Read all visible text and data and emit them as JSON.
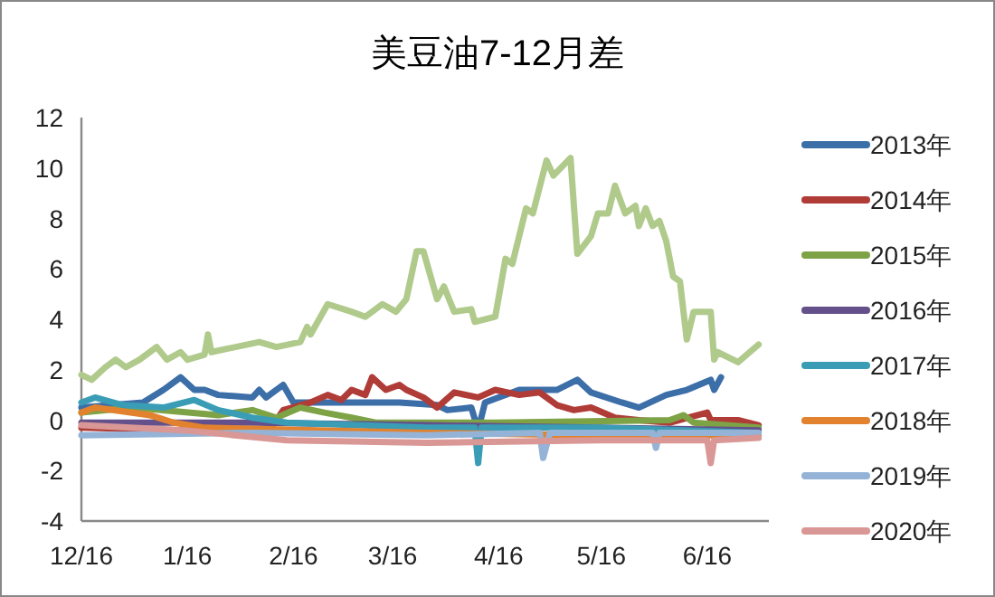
{
  "chart_data": {
    "type": "line",
    "title": "美豆油7-12月差",
    "xlim": [
      "2019-12-16",
      "2020-07-04"
    ],
    "xticks": [
      {
        "value": "2019-12-16",
        "label": "12/16"
      },
      {
        "value": "2020-01-16",
        "label": "1/16"
      },
      {
        "value": "2020-02-16",
        "label": "2/16"
      },
      {
        "value": "2020-03-16",
        "label": "3/16"
      },
      {
        "value": "2020-04-16",
        "label": "4/16"
      },
      {
        "value": "2020-05-16",
        "label": "5/16"
      },
      {
        "value": "2020-06-16",
        "label": "6/16"
      }
    ],
    "ylim": [
      -4,
      12
    ],
    "yticks": [
      -4,
      -2,
      0,
      2,
      4,
      6,
      8,
      10,
      12
    ],
    "grid": false,
    "legend": "right",
    "series": [
      {
        "color": "#b0ca8c",
        "x": [
          "2019-12-16",
          "2019-12-19",
          "2019-12-23",
          "2019-12-26",
          "2019-12-29",
          "2020-01-02",
          "2020-01-07",
          "2020-01-10",
          "2020-01-14",
          "2020-01-16",
          "2020-01-21",
          "2020-01-22",
          "2020-01-23",
          "2020-02-06",
          "2020-02-11",
          "2020-02-18",
          "2020-02-20",
          "2020-02-21",
          "2020-02-26",
          "2020-03-04",
          "2020-03-08",
          "2020-03-13",
          "2020-03-17",
          "2020-03-20",
          "2020-03-23",
          "2020-03-25",
          "2020-03-29",
          "2020-03-31",
          "2020-04-03",
          "2020-04-08",
          "2020-04-09",
          "2020-04-15",
          "2020-04-18",
          "2020-04-20",
          "2020-04-24",
          "2020-04-26",
          "2020-04-30",
          "2020-05-02",
          "2020-05-07",
          "2020-05-09",
          "2020-05-13",
          "2020-05-15",
          "2020-05-18",
          "2020-05-20",
          "2020-05-23",
          "2020-05-26",
          "2020-05-27",
          "2020-05-29",
          "2020-05-31",
          "2020-06-02",
          "2020-06-04",
          "2020-06-06",
          "2020-06-08",
          "2020-06-10",
          "2020-06-12",
          "2020-06-17",
          "2020-06-18",
          "2020-06-19",
          "2020-06-25",
          "2020-07-01"
        ],
        "values": [
          1.8,
          1.6,
          2.1,
          2.4,
          2.1,
          2.4,
          2.9,
          2.4,
          2.7,
          2.4,
          2.6,
          3.4,
          2.7,
          3.1,
          2.9,
          3.1,
          3.7,
          3.4,
          4.6,
          4.3,
          4.1,
          4.6,
          4.3,
          4.8,
          6.7,
          6.7,
          4.8,
          5.3,
          4.3,
          4.4,
          3.9,
          4.1,
          6.4,
          6.2,
          8.4,
          8.2,
          10.3,
          9.7,
          10.4,
          6.6,
          7.3,
          8.2,
          8.2,
          9.3,
          8.2,
          8.5,
          7.7,
          8.4,
          7.7,
          7.9,
          7.1,
          5.7,
          5.5,
          3.2,
          4.3,
          4.3,
          2.4,
          2.7,
          2.3,
          3.0
        ]
      },
      {
        "name": "2013年",
        "color": "#3c6ea8",
        "x": [
          "2019-12-16",
          "2020-01-03",
          "2020-01-09",
          "2020-01-14",
          "2020-01-18",
          "2020-01-21",
          "2020-01-25",
          "2020-02-04",
          "2020-02-06",
          "2020-02-08",
          "2020-02-13",
          "2020-02-16",
          "2020-03-18",
          "2020-03-29",
          "2020-04-01",
          "2020-04-08",
          "2020-04-10",
          "2020-04-12",
          "2020-04-22",
          "2020-05-03",
          "2020-05-09",
          "2020-05-13",
          "2020-05-22",
          "2020-05-27",
          "2020-06-04",
          "2020-06-10",
          "2020-06-17",
          "2020-06-18",
          "2020-06-20"
        ],
        "values": [
          0.5,
          0.7,
          1.2,
          1.7,
          1.2,
          1.2,
          1.0,
          0.9,
          1.2,
          0.9,
          1.4,
          0.7,
          0.7,
          0.6,
          0.4,
          0.5,
          -0.4,
          0.7,
          1.2,
          1.2,
          1.6,
          1.1,
          0.7,
          0.5,
          1.0,
          1.2,
          1.6,
          1.2,
          1.7
        ]
      },
      {
        "name": "2014年",
        "color": "#b03c38",
        "x": [
          "2019-12-16",
          "2020-01-15",
          "2020-02-09",
          "2020-02-13",
          "2020-02-21",
          "2020-02-26",
          "2020-03-01",
          "2020-03-04",
          "2020-03-08",
          "2020-03-10",
          "2020-03-14",
          "2020-03-18",
          "2020-03-20",
          "2020-03-25",
          "2020-03-29",
          "2020-04-03",
          "2020-04-10",
          "2020-04-15",
          "2020-04-22",
          "2020-04-28",
          "2020-05-03",
          "2020-05-08",
          "2020-05-13",
          "2020-05-20",
          "2020-05-27",
          "2020-06-05",
          "2020-06-16",
          "2020-06-17",
          "2020-06-25",
          "2020-07-01"
        ],
        "values": [
          -0.3,
          -0.4,
          -0.4,
          0.4,
          0.7,
          1.0,
          0.8,
          1.2,
          1.0,
          1.7,
          1.2,
          1.4,
          1.2,
          0.9,
          0.5,
          1.1,
          0.9,
          1.2,
          1.0,
          1.1,
          0.6,
          0.4,
          0.5,
          0.1,
          0.0,
          -0.1,
          0.3,
          0.0,
          0.0,
          -0.2
        ]
      },
      {
        "name": "2015年",
        "color": "#7ea346",
        "x": [
          "2019-12-16",
          "2019-12-31",
          "2020-01-25",
          "2020-02-04",
          "2020-02-11",
          "2020-02-18",
          "2020-02-25",
          "2020-03-04",
          "2020-03-11",
          "2020-04-15",
          "2020-06-05",
          "2020-06-09",
          "2020-06-12",
          "2020-07-01"
        ],
        "values": [
          0.3,
          0.5,
          0.2,
          0.4,
          0.1,
          0.5,
          0.3,
          0.1,
          -0.1,
          -0.1,
          0.0,
          0.2,
          -0.1,
          -0.3
        ]
      },
      {
        "name": "2016年",
        "color": "#64508a",
        "x": [
          "2019-12-16",
          "2020-02-04",
          "2020-03-26",
          "2020-05-15",
          "2020-07-01"
        ],
        "values": [
          -0.1,
          -0.1,
          -0.2,
          -0.3,
          -0.4
        ]
      },
      {
        "name": "2017年",
        "color": "#3a9db5",
        "x": [
          "2019-12-16",
          "2019-12-20",
          "2019-12-28",
          "2020-01-09",
          "2020-01-18",
          "2020-01-25",
          "2020-02-04",
          "2020-02-14",
          "2020-03-26",
          "2020-04-09",
          "2020-04-10",
          "2020-04-11",
          "2020-05-15",
          "2020-07-01"
        ],
        "values": [
          0.7,
          0.9,
          0.6,
          0.5,
          0.8,
          0.4,
          0.1,
          -0.1,
          -0.3,
          -0.3,
          -1.7,
          -0.3,
          -0.3,
          -0.5
        ]
      },
      {
        "name": "2018年",
        "color": "#e2822e",
        "x": [
          "2019-12-16",
          "2019-12-20",
          "2020-01-05",
          "2020-01-12",
          "2020-01-21",
          "2020-03-26",
          "2020-05-15",
          "2020-07-01"
        ],
        "values": [
          0.3,
          0.5,
          0.2,
          -0.1,
          -0.3,
          -0.5,
          -0.6,
          -0.6
        ]
      },
      {
        "name": "2019年",
        "color": "#95b3d7",
        "x": [
          "2019-12-16",
          "2020-02-04",
          "2020-03-26",
          "2020-04-28",
          "2020-04-29",
          "2020-05-01",
          "2020-05-31",
          "2020-06-01",
          "2020-06-02",
          "2020-07-01"
        ],
        "values": [
          -0.6,
          -0.5,
          -0.6,
          -0.5,
          -1.5,
          -0.5,
          -0.5,
          -1.1,
          -0.5,
          -0.5
        ]
      },
      {
        "name": "2020年",
        "color": "#d99795",
        "x": [
          "2019-12-16",
          "2020-01-15",
          "2020-02-14",
          "2020-03-26",
          "2020-05-15",
          "2020-06-16",
          "2020-06-17",
          "2020-06-18",
          "2020-07-01"
        ],
        "values": [
          -0.2,
          -0.4,
          -0.8,
          -0.9,
          -0.8,
          -0.8,
          -1.7,
          -0.8,
          -0.7
        ]
      }
    ]
  }
}
